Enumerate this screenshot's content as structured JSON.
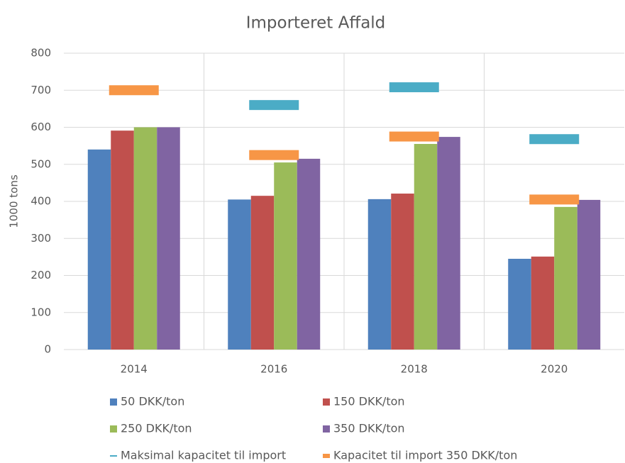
{
  "chart_data": {
    "type": "bar",
    "title": "Importeret Affald",
    "y_label": "1000 tons",
    "categories": [
      "2014",
      "2016",
      "2018",
      "2020"
    ],
    "series": [
      {
        "name": "50 DKK/ton",
        "color": "#4f81bd",
        "style": "bar",
        "values": [
          540,
          405,
          406,
          245
        ]
      },
      {
        "name": "150 DKK/ton",
        "color": "#c0504d",
        "style": "bar",
        "values": [
          591,
          415,
          421,
          251
        ]
      },
      {
        "name": "250 DKK/ton",
        "color": "#9bbb59",
        "style": "bar",
        "values": [
          600,
          505,
          555,
          385
        ]
      },
      {
        "name": "350 DKK/ton",
        "color": "#8064a2",
        "style": "bar",
        "values": [
          600,
          515,
          574,
          404
        ]
      },
      {
        "name": "Maksimal kapacitet til import",
        "color": "#4bacc6",
        "style": "dash",
        "values": [
          null,
          660,
          708,
          568
        ]
      },
      {
        "name": "Kapacitet til import 350 DKK/ton",
        "color": "#f79646",
        "style": "dash",
        "values": [
          700,
          525,
          575,
          405
        ]
      }
    ],
    "ylim": [
      0,
      800
    ],
    "yticks": [
      0,
      100,
      200,
      300,
      400,
      500,
      600,
      700,
      800
    ],
    "grid": true
  }
}
